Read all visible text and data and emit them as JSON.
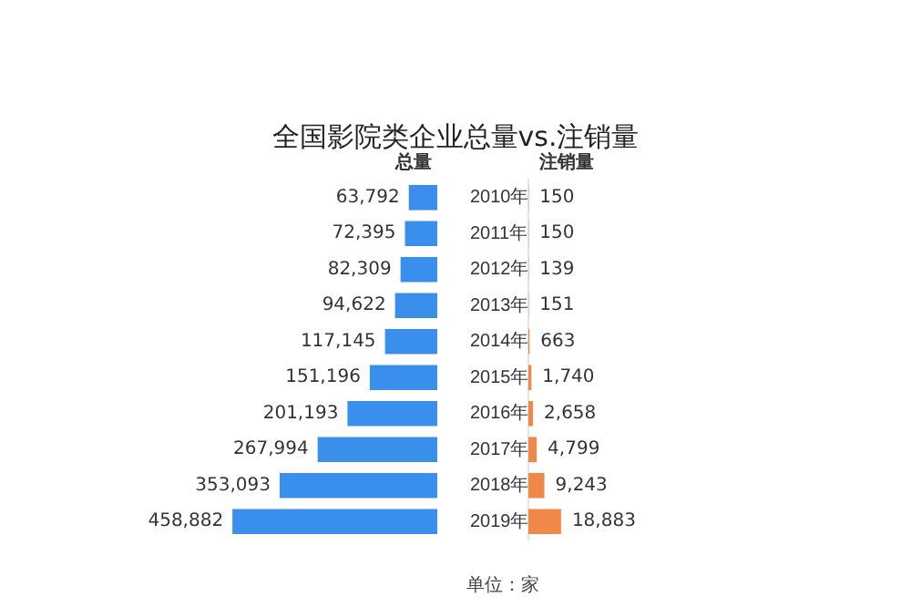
{
  "chart_data": [
    {
      "type": "bar",
      "orientation": "horizontal",
      "title": "全国影院类企业总量vs.注销量",
      "categories": [
        "2010年",
        "2011年",
        "2012年",
        "2013年",
        "2014年",
        "2015年",
        "2016年",
        "2017年",
        "2018年",
        "2019年"
      ],
      "series": [
        {
          "name": "总量",
          "color": "#3b8fec",
          "values": [
            63792,
            72395,
            82309,
            94622,
            117145,
            151196,
            201193,
            267994,
            353093,
            458882
          ],
          "value_labels": [
            "63,792",
            "72,395",
            "82,309",
            "94,622",
            "117,145",
            "151,196",
            "201,193",
            "267,994",
            "353,093",
            "458,882"
          ]
        }
      ],
      "tick_labels": "y",
      "annotations": [
        "单位：家"
      ]
    },
    {
      "type": "bar",
      "orientation": "horizontal",
      "categories": [
        null,
        null,
        null,
        null,
        null,
        null,
        null,
        null,
        null,
        null
      ],
      "series": [
        {
          "name": "注销量",
          "color": "#f0884a",
          "values": [
            150,
            150,
            139,
            151,
            663,
            1740,
            2658,
            4799,
            9243,
            18883
          ],
          "value_labels": [
            "150",
            "150",
            "139",
            "151",
            "663",
            "1,740",
            "2,658",
            "4,799",
            "9,243",
            "18,883"
          ]
        }
      ]
    }
  ]
}
